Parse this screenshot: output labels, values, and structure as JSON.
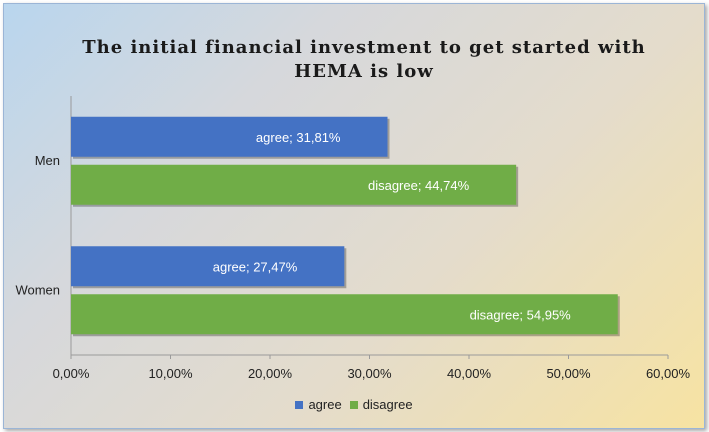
{
  "chart_data": {
    "type": "bar",
    "orientation": "horizontal",
    "title": "The initial financial investment  to get started with HEMA is low",
    "categories": [
      "Men",
      "Women"
    ],
    "series": [
      {
        "name": "agree",
        "values": [
          31.81,
          27.47
        ],
        "labels": [
          "agree; 31,81%",
          "agree; 27,47%"
        ],
        "color": "#4472c4"
      },
      {
        "name": "disagree",
        "values": [
          44.74,
          54.95
        ],
        "labels": [
          "disagree; 44,74%",
          "disagree; 54,95%"
        ],
        "color": "#70ad47"
      }
    ],
    "xlim": [
      0,
      60
    ],
    "xticks": [
      "0,00%",
      "10,00%",
      "20,00%",
      "30,00%",
      "40,00%",
      "50,00%",
      "60,00%"
    ],
    "xlabel": "",
    "ylabel": "",
    "grid": false,
    "legend_position": "bottom"
  }
}
